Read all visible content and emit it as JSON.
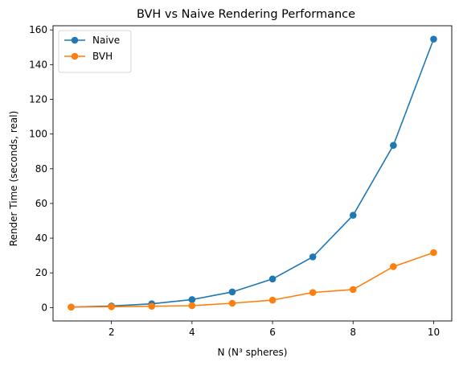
{
  "chart_data": {
    "type": "line",
    "title": "BVH vs Naive Rendering Performance",
    "xlabel": "N (N³ spheres)",
    "ylabel": "Render Time (seconds, real)",
    "x": [
      1,
      2,
      3,
      4,
      5,
      6,
      7,
      8,
      9,
      10
    ],
    "xlim": [
      0.55,
      10.45
    ],
    "ylim": [
      -7.7,
      162.4
    ],
    "xticks": [
      2,
      4,
      6,
      8,
      10
    ],
    "yticks": [
      0,
      20,
      40,
      60,
      80,
      100,
      120,
      140,
      160
    ],
    "grid": false,
    "legend_position": "top-left",
    "series": [
      {
        "name": "Naive",
        "color": "#1f77b4",
        "marker": "circle",
        "values": [
          0.3,
          0.9,
          2.2,
          4.6,
          9.0,
          16.5,
          29.2,
          53.2,
          93.5,
          154.7
        ]
      },
      {
        "name": "BVH",
        "color": "#ff7f0e",
        "marker": "circle",
        "values": [
          0.3,
          0.5,
          0.8,
          1.1,
          2.5,
          4.3,
          8.7,
          10.4,
          23.6,
          31.7
        ]
      }
    ]
  }
}
